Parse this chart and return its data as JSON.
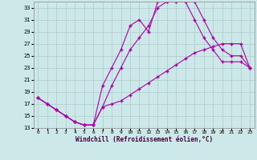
{
  "xlabel": "Windchill (Refroidissement éolien,°C)",
  "bg_color": "#cce8e8",
  "grid_color": "#b0d0d0",
  "line_color": "#aa00aa",
  "xlim": [
    -0.5,
    23.5
  ],
  "ylim": [
    13,
    34
  ],
  "yticks": [
    13,
    15,
    17,
    19,
    21,
    23,
    25,
    27,
    29,
    31,
    33
  ],
  "xticks": [
    0,
    1,
    2,
    3,
    4,
    5,
    6,
    7,
    8,
    9,
    10,
    11,
    12,
    13,
    14,
    15,
    16,
    17,
    18,
    19,
    20,
    21,
    22,
    23
  ],
  "line1_x": [
    0,
    1,
    2,
    3,
    4,
    5,
    6,
    7,
    8,
    9,
    10,
    11,
    12,
    13,
    14,
    15,
    16,
    17,
    18,
    19,
    20,
    21,
    22,
    23
  ],
  "line1_y": [
    18,
    17,
    16,
    15,
    14,
    13.5,
    13.5,
    20,
    23,
    26,
    30,
    31,
    29,
    34,
    34,
    34,
    34,
    34,
    31,
    28,
    26,
    25,
    25,
    23
  ],
  "line2_x": [
    0,
    1,
    2,
    3,
    4,
    5,
    6,
    7,
    8,
    9,
    10,
    11,
    12,
    13,
    14,
    15,
    16,
    17,
    18,
    19,
    20,
    21,
    22,
    23
  ],
  "line2_y": [
    18,
    17,
    16,
    15,
    14,
    13.5,
    13.5,
    16.5,
    20,
    23,
    26,
    28,
    30,
    33,
    34,
    34,
    34,
    31,
    28,
    26,
    24,
    24,
    24,
    23
  ],
  "line3_x": [
    0,
    1,
    2,
    3,
    4,
    5,
    6,
    7,
    8,
    9,
    10,
    11,
    12,
    13,
    14,
    15,
    16,
    17,
    18,
    19,
    20,
    21,
    22,
    23
  ],
  "line3_y": [
    18,
    17,
    16,
    15,
    14,
    13.5,
    13.5,
    16.5,
    17,
    17.5,
    18.5,
    19.5,
    20.5,
    21.5,
    22.5,
    23.5,
    24.5,
    25.5,
    26,
    26.5,
    27,
    27,
    27,
    23
  ]
}
